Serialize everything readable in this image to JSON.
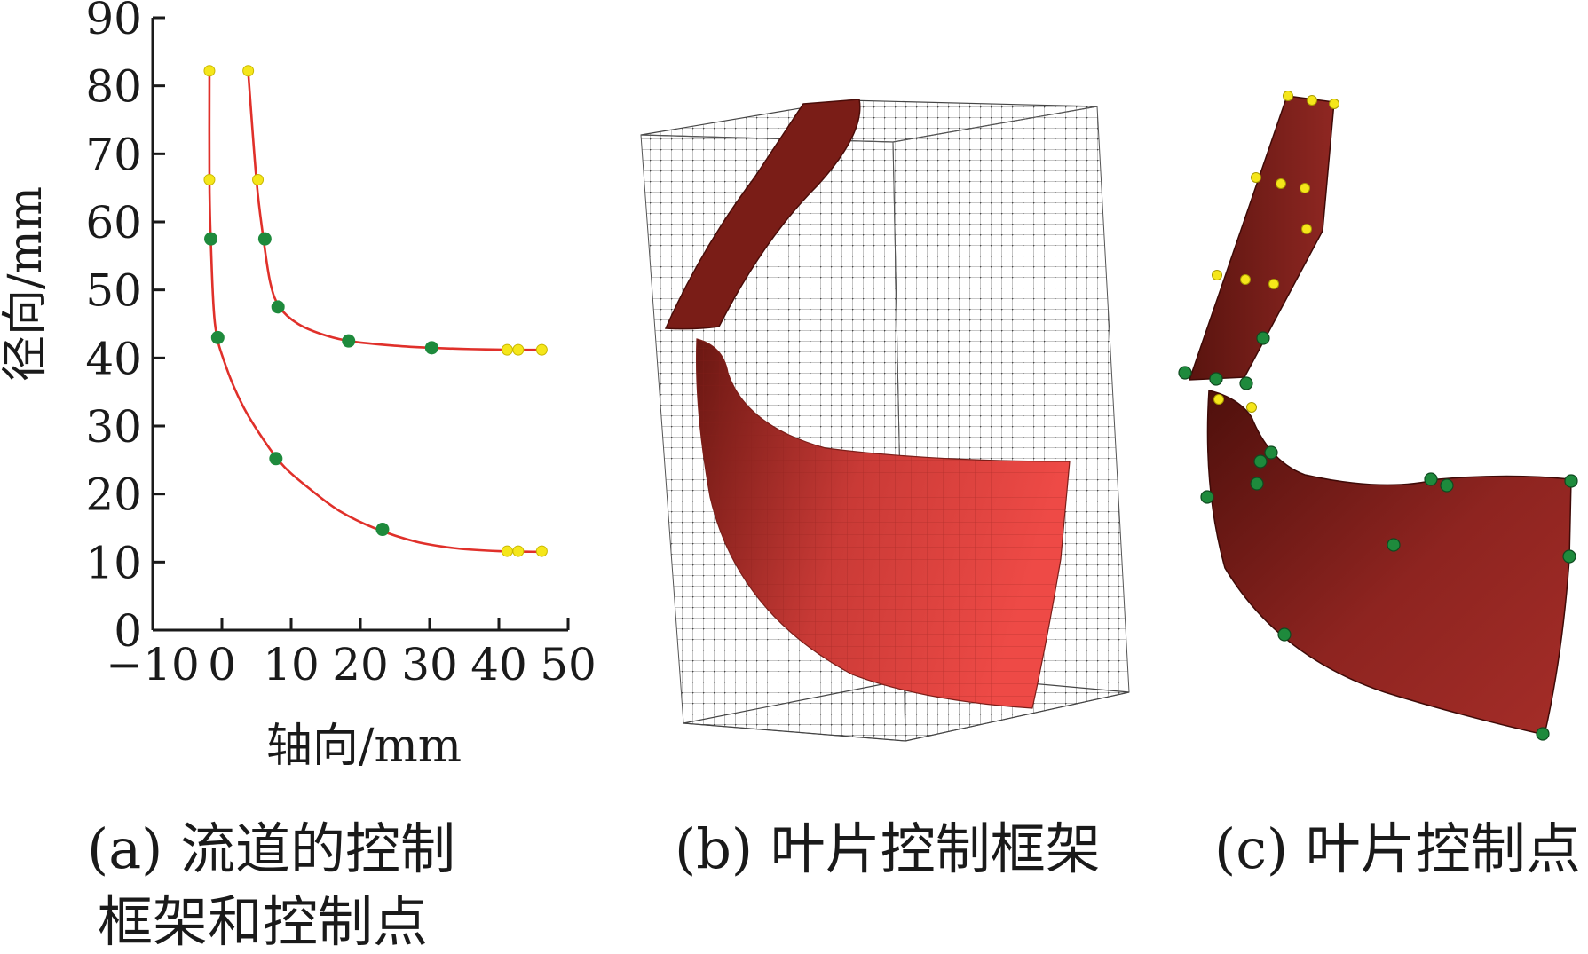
{
  "figure": {
    "panel_a": {
      "caption_line1": "(a) 流道的控制",
      "caption_line2": "框架和控制点"
    },
    "panel_b": {
      "caption": "(b) 叶片控制框架"
    },
    "panel_c": {
      "caption": "(c) 叶片控制点"
    }
  },
  "colors": {
    "curve": "#e0302a",
    "control_point": "#1e8a3c",
    "fixed_point": "#f5e61a",
    "blade": "#c63a36",
    "blade_dark": "#5e1410",
    "lattice": "#555555"
  },
  "chart_data": {
    "type": "line",
    "title": "",
    "xlabel": "轴向/mm",
    "ylabel": "径向/mm",
    "xlim": [
      -10,
      50
    ],
    "ylim": [
      0,
      90
    ],
    "xticks": [
      -10,
      0,
      10,
      20,
      30,
      40,
      50
    ],
    "yticks": [
      0,
      10,
      20,
      30,
      40,
      50,
      60,
      70,
      80,
      90
    ],
    "series": [
      {
        "role": "hub",
        "curve": [
          [
            -1.8,
            82
          ],
          [
            -1.8,
            66
          ],
          [
            -1.6,
            57
          ],
          [
            -1,
            45
          ],
          [
            0.5,
            39
          ],
          [
            3,
            33
          ],
          [
            6,
            28
          ],
          [
            9,
            24
          ],
          [
            13,
            20.5
          ],
          [
            17,
            17.5
          ],
          [
            22,
            15
          ],
          [
            28,
            13
          ],
          [
            34,
            12
          ],
          [
            40,
            11.6
          ],
          [
            46,
            11.5
          ]
        ],
        "control_points": [
          [
            -1.6,
            57.5
          ],
          [
            -0.6,
            43
          ],
          [
            7.8,
            25.2
          ],
          [
            23.2,
            14.8
          ]
        ],
        "fixed_points": [
          [
            -1.8,
            82.2
          ],
          [
            -1.8,
            66.2
          ],
          [
            41.2,
            11.6
          ],
          [
            42.8,
            11.6
          ],
          [
            46.2,
            11.6
          ]
        ]
      },
      {
        "role": "shroud",
        "curve": [
          [
            3.8,
            82
          ],
          [
            5,
            66
          ],
          [
            6,
            57.5
          ],
          [
            7,
            51
          ],
          [
            8.3,
            47.5
          ],
          [
            11,
            45
          ],
          [
            15,
            43.3
          ],
          [
            19,
            42.4
          ],
          [
            25,
            41.8
          ],
          [
            30,
            41.5
          ],
          [
            36,
            41.3
          ],
          [
            42,
            41.2
          ],
          [
            46,
            41.2
          ]
        ],
        "control_points": [
          [
            6.2,
            57.5
          ],
          [
            8.1,
            47.5
          ],
          [
            18.3,
            42.5
          ],
          [
            30.3,
            41.5
          ]
        ],
        "fixed_points": [
          [
            3.8,
            82.2
          ],
          [
            5.2,
            66.2
          ],
          [
            41.2,
            41.2
          ],
          [
            42.8,
            41.2
          ],
          [
            46.2,
            41.2
          ]
        ]
      }
    ]
  }
}
